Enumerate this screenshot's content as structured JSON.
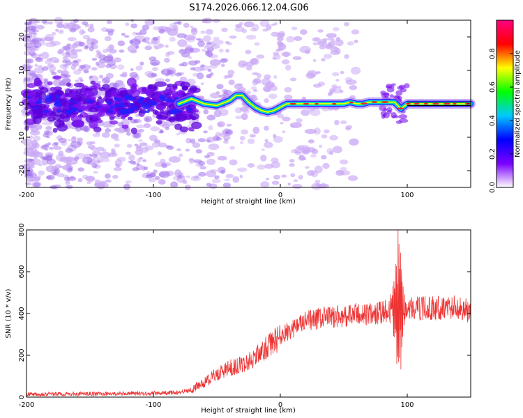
{
  "title": "S174.2026.066.12.04.G06",
  "chart_data": [
    {
      "type": "heatmap",
      "name": "spectrogram",
      "xlabel": "Height of straight line (km)",
      "ylabel": "Frequency (Hz)",
      "xlim": [
        -200,
        150
      ],
      "ylim": [
        -25,
        25
      ],
      "xticks": [
        -200,
        -100,
        0,
        100
      ],
      "yticks": [
        -20,
        -10,
        0,
        10,
        20
      ],
      "colorbar": {
        "label": "Normalized spectral amplitude",
        "range": [
          0,
          1
        ],
        "ticks": [
          "0.0",
          "0.2",
          "0.4",
          "0.6",
          "0.8"
        ],
        "colors": [
          "#ffffff",
          "#7b00ff",
          "#0000ff",
          "#00c8ff",
          "#00ff00",
          "#ffff00",
          "#ff0000",
          "#ff0080"
        ]
      },
      "signal_track": {
        "heights": [
          -200,
          -180,
          -160,
          -140,
          -120,
          -100,
          -80,
          -70,
          -60,
          -50,
          -40,
          -35,
          -30,
          -25,
          -20,
          -15,
          -10,
          -5,
          0,
          5,
          10,
          20,
          30,
          40,
          50,
          55,
          60,
          65,
          70,
          80,
          90,
          95,
          100,
          110,
          120,
          130,
          150
        ],
        "frequency_hz": [
          0,
          0.5,
          -0.5,
          0.5,
          -0.5,
          0.3,
          0,
          1.5,
          0,
          -0.5,
          1,
          2.5,
          2.5,
          0.5,
          -1,
          -2,
          -2.5,
          -2,
          -1,
          0,
          0,
          0,
          0,
          0,
          0,
          0.5,
          0,
          0,
          0.5,
          0.5,
          0.5,
          -1.5,
          0,
          0,
          0,
          0,
          0
        ]
      },
      "reference_line_hz": 0
    },
    {
      "type": "line",
      "name": "snr",
      "xlabel": "Height of straight line (km)",
      "ylabel": "SNR (10 * v/v)",
      "xlim": [
        -200,
        150
      ],
      "ylim": [
        0,
        800
      ],
      "xticks": [
        -200,
        -100,
        0,
        100
      ],
      "yticks": [
        0,
        200,
        400,
        600,
        800
      ],
      "color": "#ee3333",
      "trend": {
        "x": [
          -200,
          -150,
          -100,
          -80,
          -70,
          -60,
          -50,
          -40,
          -30,
          -20,
          -10,
          0,
          10,
          20,
          30,
          40,
          50,
          60,
          70,
          80,
          90,
          100,
          110,
          120,
          130,
          140,
          150
        ],
        "y": [
          15,
          15,
          18,
          22,
          35,
          70,
          110,
          140,
          155,
          190,
          240,
          290,
          330,
          360,
          375,
          385,
          385,
          395,
          395,
          405,
          420,
          420,
          425,
          425,
          430,
          430,
          405
        ]
      }
    }
  ]
}
